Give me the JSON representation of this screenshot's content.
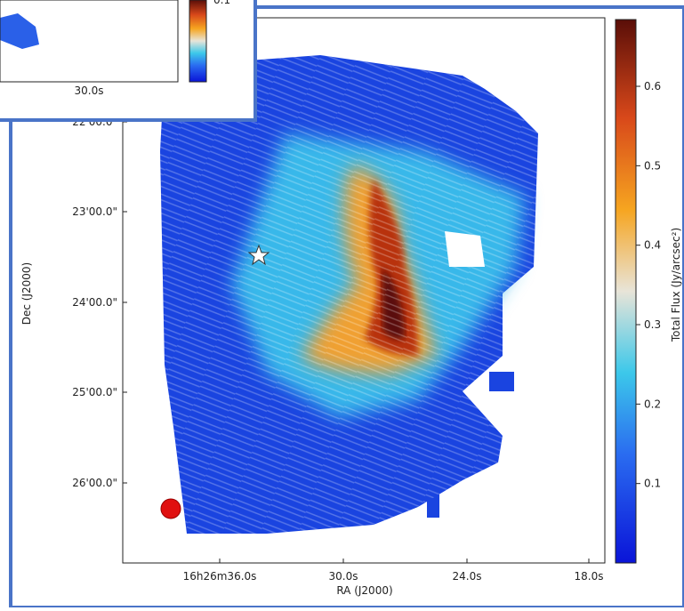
{
  "main_plot": {
    "x_label": "RA (J2000)",
    "y_label": "Dec (J2000)",
    "x_ticks": [
      "16h26m36.0s",
      "30.0s",
      "24.0s",
      "18.0s"
    ],
    "y_ticks": [
      "22'00.0\"",
      "23'00.0\"",
      "24'00.0\"",
      "25'00.0\"",
      "26'00.0\""
    ],
    "colorbar": {
      "label": "Total Flux (Jy/arcsec²)",
      "lim": [
        0,
        0.684
      ],
      "ticks": [
        0.1,
        0.2,
        0.3,
        0.4,
        0.5,
        0.6
      ]
    }
  },
  "inset": {
    "x_tick": "30.0s",
    "colorbar_tick": 0.1
  }
}
